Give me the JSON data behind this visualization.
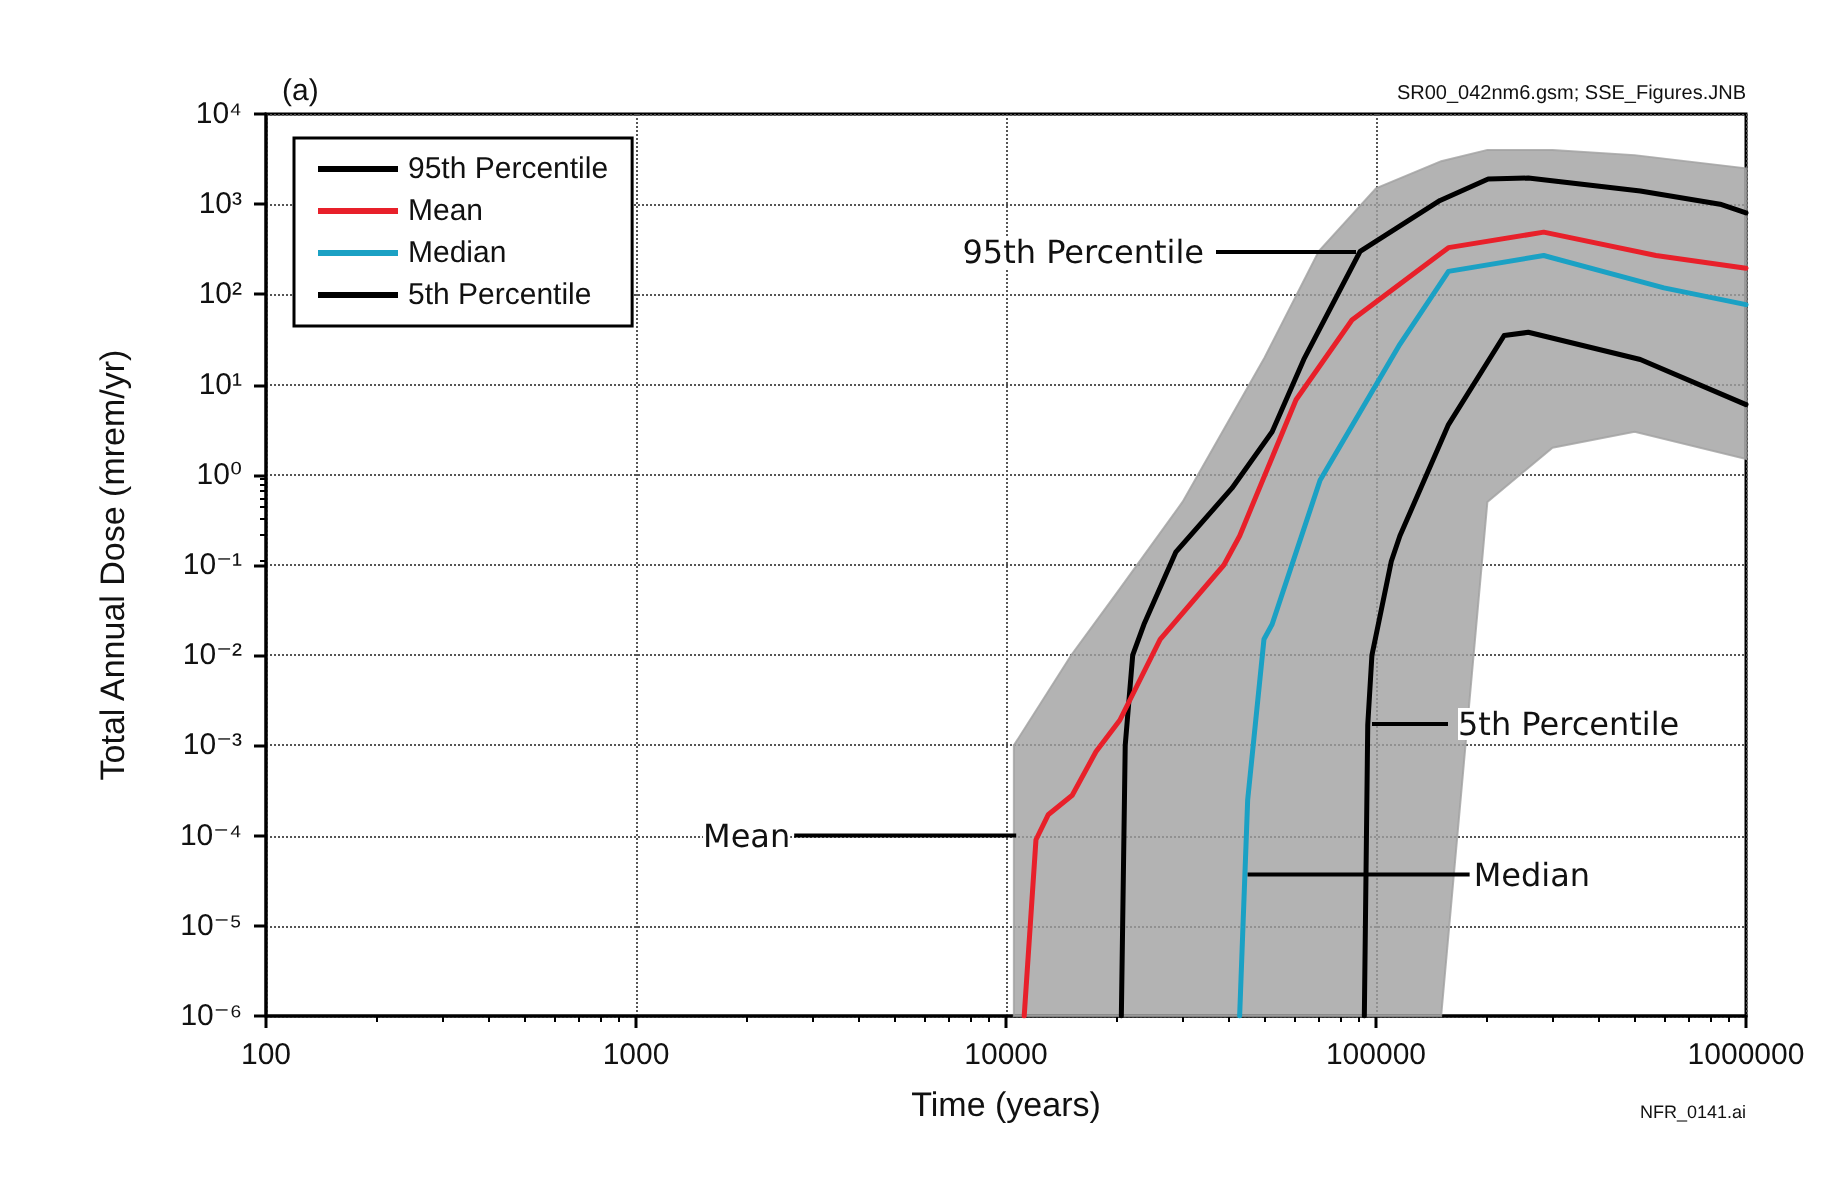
{
  "chart_data": {
    "type": "line",
    "xlabel": "Time (years)",
    "ylabel": "Total Annual Dose (mrem/yr)",
    "log": "xy",
    "grid": true,
    "legend": "top left",
    "marker": "none",
    "line_style": "solid",
    "xlim": [
      100,
      1000000
    ],
    "xticks": [
      100,
      1000,
      10000,
      100000,
      1000000
    ],
    "ylim": [
      1e-06,
      10000
    ],
    "yticks": [
      {
        "value": 1e-06,
        "label": "10⁻⁶"
      },
      {
        "value": 1e-05,
        "label": "10⁻⁵"
      },
      {
        "value": 0.0001,
        "label": "10⁻⁴"
      },
      {
        "value": 0.001,
        "label": "10⁻³"
      },
      {
        "value": 0.01,
        "label": "10⁻²"
      },
      {
        "value": 0.1,
        "label": "10⁻¹"
      },
      {
        "value": 1,
        "label": "10⁰"
      },
      {
        "value": 10,
        "label": "10¹"
      },
      {
        "value": 100,
        "label": "10²"
      },
      {
        "value": 1000,
        "label": "10³"
      },
      {
        "value": 10000,
        "label": "10⁴"
      }
    ],
    "series": [
      {
        "type": "area",
        "color": "#a0a0a0",
        "x": [
          10500,
          15000,
          20000,
          30000,
          50000,
          70000,
          100000,
          150000,
          200000,
          300000,
          500000,
          1000000
        ],
        "values": [
          null,
          null,
          null,
          null,
          null,
          null,
          null,
          null,
          null,
          null,
          null,
          null
        ],
        "upper": [
          0.001,
          0.01,
          0.05,
          0.5,
          20,
          300,
          1500,
          3000,
          4000,
          4000,
          3500,
          2500
        ],
        "lower": [
          1e-06,
          1e-06,
          1e-06,
          1e-06,
          1e-06,
          1e-06,
          1e-06,
          1e-06,
          0.5,
          2,
          3,
          1.5
        ]
      },
      {
        "name": "95th Percentile",
        "color": "#000000",
        "x": [
          20500,
          21000,
          22000,
          23600,
          28800,
          40800,
          52400,
          63800,
          90600,
          149000,
          201000,
          258000,
          518000,
          851000,
          1000000
        ],
        "values": [
          1e-06,
          0.001,
          0.01,
          0.022,
          0.14,
          0.71,
          3.0,
          19,
          300,
          1100,
          1900,
          1950,
          1400,
          1000,
          800
        ]
      },
      {
        "name": "Mean",
        "color": "#e8202a",
        "x": [
          11200,
          12050,
          13000,
          15100,
          17500,
          20300,
          26100,
          38800,
          42800,
          60800,
          86100,
          157000,
          284000,
          571000,
          1000000
        ],
        "values": [
          1e-06,
          9e-05,
          0.00017,
          0.00028,
          0.00085,
          0.0019,
          0.015,
          0.1,
          0.21,
          6.8,
          52,
          330,
          490,
          270,
          195
        ]
      },
      {
        "name": "Median",
        "color": "#1ba1c4",
        "x": [
          42800,
          45000,
          49800,
          52400,
          70600,
          116000,
          157000,
          284000,
          600000,
          1000000
        ],
        "values": [
          1e-06,
          0.00025,
          0.015,
          0.022,
          0.87,
          28,
          180,
          270,
          118,
          77
        ]
      },
      {
        "name": "5th Percentile",
        "color": "#000000",
        "x": [
          93000,
          95000,
          97500,
          110000,
          116000,
          157000,
          222000,
          258000,
          518000,
          1000000
        ],
        "values": [
          1e-06,
          0.0017,
          0.01,
          0.11,
          0.21,
          3.6,
          35,
          38,
          19,
          6.0
        ]
      }
    ],
    "annotations": [
      "95th Percentile",
      {
        "text": "Mean",
        "x": 11200,
        "y": 0.0001
      },
      {
        "text": "Median",
        "x": 42800,
        "y": 3.7e-05
      },
      "5th Percentile",
      "(a)",
      "SR00_042nm6.gsm; SSE_Figures.JNB",
      "NFR_0141.ai"
    ]
  }
}
